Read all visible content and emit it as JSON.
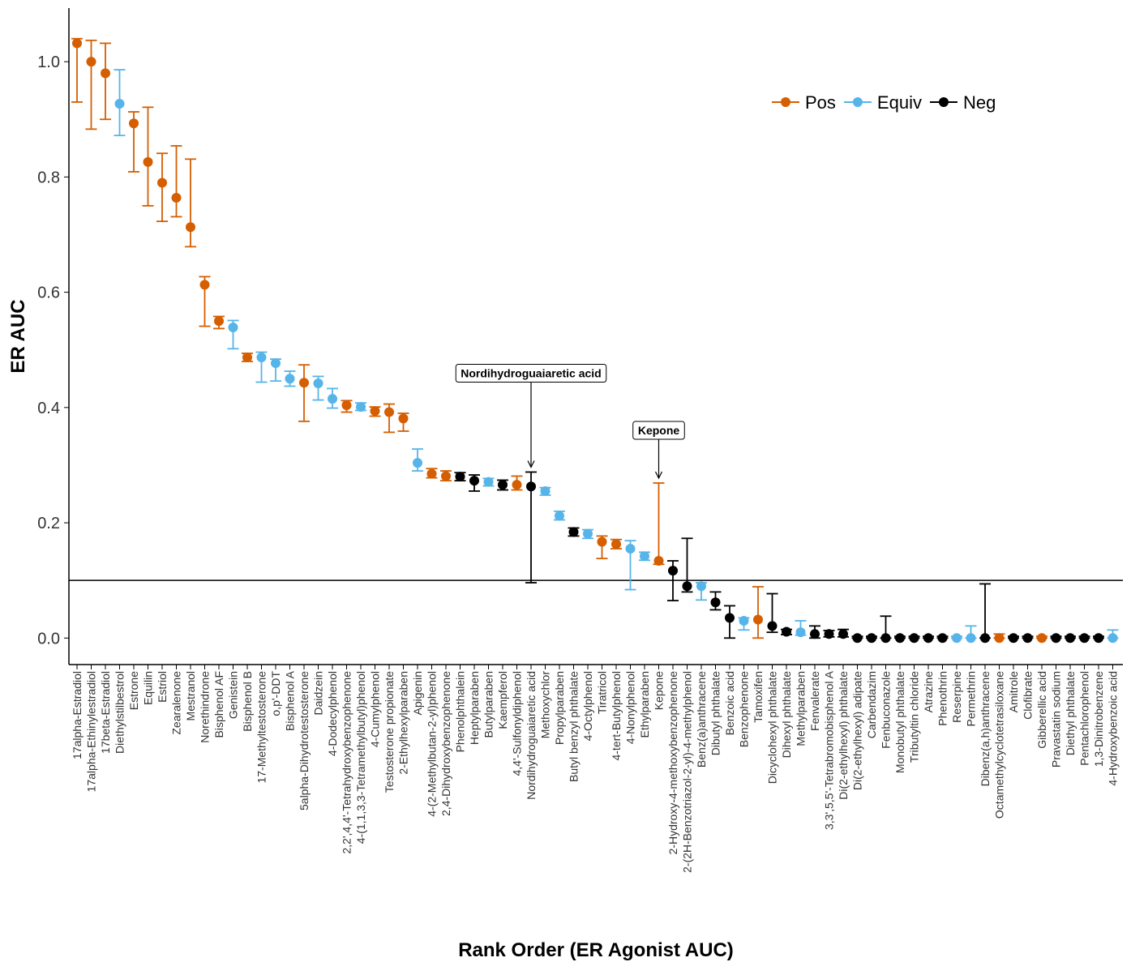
{
  "chart_data": {
    "type": "errorpoint",
    "ylabel": "ER AUC",
    "xlabel": "Rank Order (ER Agonist AUC)",
    "categories": [
      "17alpha-Estradiol",
      "17alpha-Ethinylestradiol",
      "17beta-Estradiol",
      "Diethylstilbestrol",
      "Estrone",
      "Equilin",
      "Estriol",
      "Zearalenone",
      "Mestranol",
      "Norethindrone",
      "Bisphenol AF",
      "Genistein",
      "Bisphenol B",
      "17-Methyltestosterone",
      "o,p'-DDT",
      "Bisphenol A",
      "5alpha-Dihydrotestosterone",
      "Daidzein",
      "4-Dodecylphenol",
      "2,2',4,4'-Tetrahydroxybenzophenone",
      "4-(1,1,3,3-Tetramethylbutyl)phenol",
      "4-Cumylphenol",
      "Testosterone propionate",
      "2-Ethylhexylparaben",
      "Apigenin",
      "4-(2-Methylbutan-2-yl)phenol",
      "2,4-Dihydroxybenzophenone",
      "Phenolphthalein",
      "Heptylparaben",
      "Butylparaben",
      "Kaempferol",
      "4,4'-Sulfonyldiphenol",
      "Nordihydroguaiaretic acid",
      "Methoxychlor",
      "Propylparaben",
      "Butyl benzyl phthalate",
      "4-Octylphenol",
      "Tiratricol",
      "4-tert-Butylphenol",
      "4-Nonylphenol",
      "Ethylparaben",
      "Kepone",
      "2-Hydroxy-4-methoxybenzophenone",
      "2-(2H-Benzotriazol-2-yl)-4-methylphenol",
      "Benz(a)anthracene",
      "Dibutyl phthalate",
      "Benzoic acid",
      "Benzophenone",
      "Tamoxifen",
      "Dicyclohexyl phthalate",
      "Dihexyl phthalate",
      "Methylparaben",
      "Fenvalerate",
      "3,3',5,5'-Tetrabromobisphenol A",
      "Di(2-ethylhexyl) phthalate",
      "Di(2-ethylhexyl) adipate",
      "Carbendazim",
      "Fenbuconazole",
      "Monobutyl phthalate",
      "Tributyltin chloride",
      "Atrazine",
      "Phenothrin",
      "Reserpine",
      "Permethrin",
      "Dibenz(a,h)anthracene",
      "Octamethylcyclotetrasiloxane",
      "Amitrole",
      "Clofibrate",
      "Gibberellic acid",
      "Pravastatin sodium",
      "Diethyl phthalate",
      "Pentachlorophenol",
      "1,3-Dinitrobenzene",
      "4-Hydroxybenzoic acid"
    ],
    "values": [
      1.032,
      1.0,
      0.98,
      0.927,
      0.893,
      0.826,
      0.79,
      0.764,
      0.713,
      0.613,
      0.55,
      0.539,
      0.487,
      0.487,
      0.477,
      0.45,
      0.443,
      0.442,
      0.415,
      0.404,
      0.401,
      0.394,
      0.392,
      0.381,
      0.304,
      0.285,
      0.281,
      0.28,
      0.273,
      0.271,
      0.266,
      0.266,
      0.263,
      0.255,
      0.212,
      0.184,
      0.181,
      0.167,
      0.163,
      0.155,
      0.142,
      0.134,
      0.117,
      0.09,
      0.09,
      0.062,
      0.035,
      0.03,
      0.032,
      0.021,
      0.011,
      0.01,
      0.007,
      0.007,
      0.007,
      0,
      0,
      0,
      0,
      0,
      0,
      0,
      0,
      0,
      0,
      0,
      0,
      0,
      0,
      0,
      0,
      0,
      0,
      0
    ],
    "lower": [
      0.93,
      0.883,
      0.9,
      0.872,
      0.809,
      0.75,
      0.723,
      0.731,
      0.679,
      0.541,
      0.537,
      0.502,
      0.48,
      0.444,
      0.446,
      0.437,
      0.376,
      0.413,
      0.399,
      0.392,
      0.395,
      0.385,
      0.357,
      0.359,
      0.29,
      0.278,
      0.273,
      0.273,
      0.255,
      0.264,
      0.257,
      0.257,
      0.096,
      0.248,
      0.205,
      0.177,
      0.173,
      0.138,
      0.155,
      0.084,
      0.135,
      0.128,
      0.065,
      0.08,
      0.066,
      0.049,
      0,
      0.014,
      0,
      0.01,
      0.006,
      0.005,
      0,
      0.002,
      0.002,
      0,
      0,
      0,
      0,
      0,
      0,
      0,
      0,
      0,
      0,
      0,
      0,
      0,
      0,
      0,
      0,
      0,
      0,
      0
    ],
    "upper": [
      1.04,
      1.037,
      1.032,
      0.986,
      0.913,
      0.921,
      0.841,
      0.854,
      0.831,
      0.627,
      0.558,
      0.551,
      0.494,
      0.496,
      0.484,
      0.463,
      0.474,
      0.454,
      0.433,
      0.412,
      0.408,
      0.401,
      0.406,
      0.39,
      0.328,
      0.294,
      0.29,
      0.287,
      0.283,
      0.277,
      0.274,
      0.281,
      0.288,
      0.261,
      0.22,
      0.191,
      0.188,
      0.177,
      0.171,
      0.169,
      0.149,
      0.269,
      0.134,
      0.173,
      0.096,
      0.08,
      0.056,
      0.035,
      0.089,
      0.077,
      0.015,
      0.03,
      0.021,
      0.013,
      0.015,
      0.003,
      0.003,
      0.038,
      0.003,
      0.003,
      0.003,
      0.003,
      0.003,
      0.021,
      0.094,
      0.007,
      0.003,
      0.003,
      0.003,
      0.003,
      0.003,
      0.003,
      0.003,
      0.014
    ],
    "class": [
      "Pos",
      "Pos",
      "Pos",
      "Equiv",
      "Pos",
      "Pos",
      "Pos",
      "Pos",
      "Pos",
      "Pos",
      "Pos",
      "Equiv",
      "Pos",
      "Equiv",
      "Equiv",
      "Equiv",
      "Pos",
      "Equiv",
      "Equiv",
      "Pos",
      "Equiv",
      "Pos",
      "Pos",
      "Pos",
      "Equiv",
      "Pos",
      "Pos",
      "Neg",
      "Neg",
      "Equiv",
      "Neg",
      "Pos",
      "Neg",
      "Equiv",
      "Equiv",
      "Neg",
      "Equiv",
      "Pos",
      "Pos",
      "Equiv",
      "Equiv",
      "Pos",
      "Neg",
      "Neg",
      "Equiv",
      "Neg",
      "Neg",
      "Equiv",
      "Pos",
      "Neg",
      "Neg",
      "Equiv",
      "Neg",
      "Neg",
      "Neg",
      "Neg",
      "Neg",
      "Neg",
      "Neg",
      "Neg",
      "Neg",
      "Neg",
      "Equiv",
      "Equiv",
      "Neg",
      "Pos",
      "Neg",
      "Neg",
      "Pos",
      "Neg",
      "Neg",
      "Neg",
      "Neg",
      "Equiv"
    ],
    "legend": [
      {
        "name": "Pos",
        "color": "#d55e00"
      },
      {
        "name": "Equiv",
        "color": "#56b4e9"
      },
      {
        "name": "Neg",
        "color": "#000000"
      }
    ],
    "hline": 0.1,
    "annotations": [
      {
        "text": "Nordihydroguaiaretic acid"
      },
      {
        "text": "Kepone"
      }
    ],
    "ylim": [
      -0.046,
      1.093
    ],
    "yticks": [
      {
        "value": 0,
        "label": "0.0"
      },
      {
        "value": 0.2,
        "label": "0.2"
      },
      {
        "value": 0.4,
        "label": "0.4"
      },
      {
        "value": 0.6,
        "label": "0.6"
      },
      {
        "value": 0.8,
        "label": "0.8"
      },
      {
        "value": 1,
        "label": "1.0"
      }
    ]
  }
}
